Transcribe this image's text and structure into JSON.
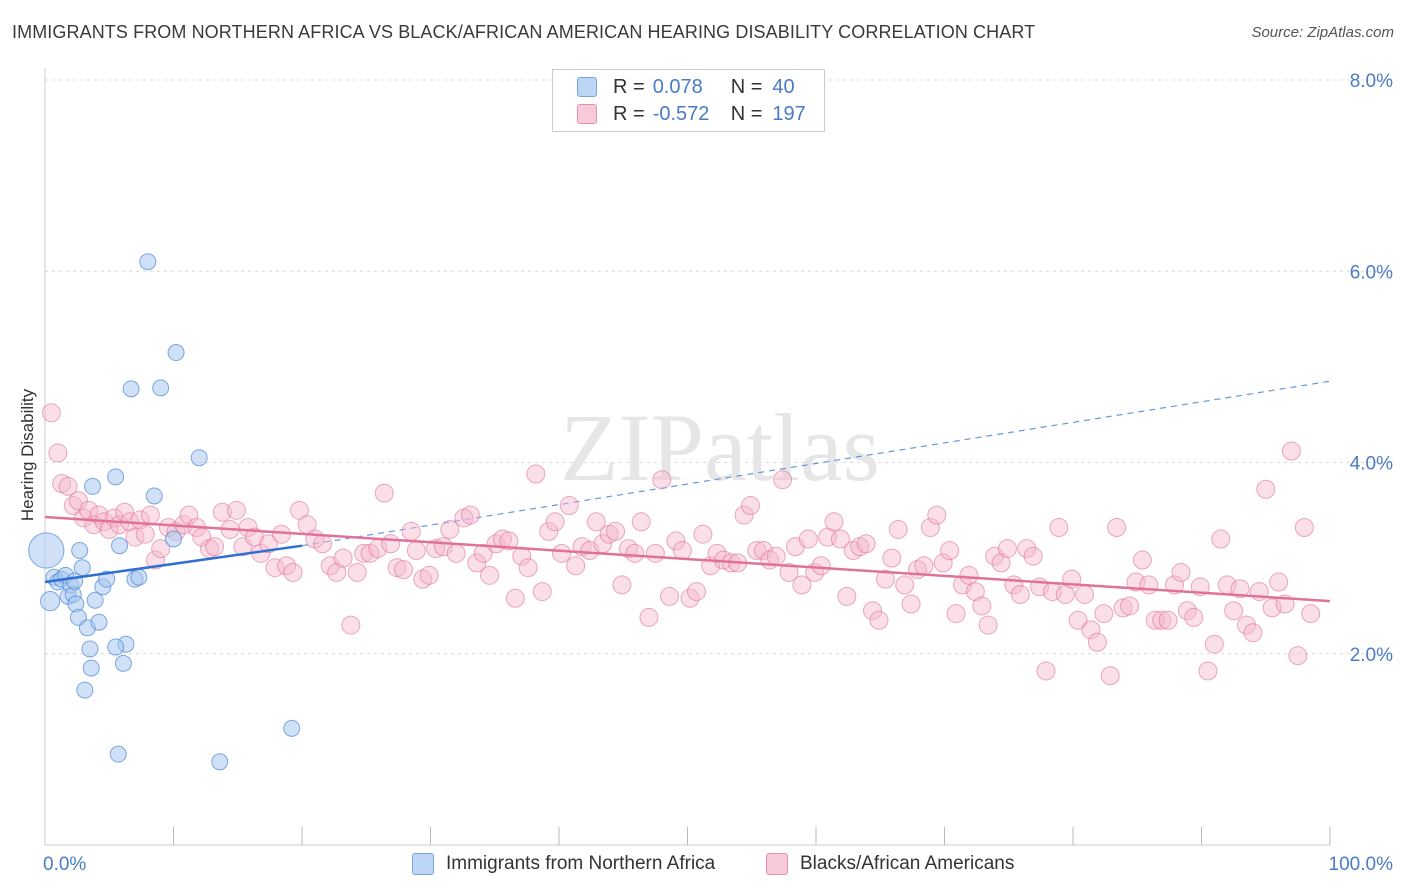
{
  "title": "IMMIGRANTS FROM NORTHERN AFRICA VS BLACK/AFRICAN AMERICAN HEARING DISABILITY CORRELATION CHART",
  "source": "Source: ZipAtlas.com",
  "watermark": "ZIPatlas",
  "legend": {
    "rows": [
      {
        "r_label": "R =",
        "r_value": "0.078",
        "n_label": "N =",
        "n_value": "40",
        "color": "#a9c8f0"
      },
      {
        "r_label": "R =",
        "r_value": "-0.572",
        "n_label": "N =",
        "n_value": "197",
        "color": "#f5b8cb"
      }
    ]
  },
  "bottom_legend": [
    {
      "label": "Immigrants from Northern Africa",
      "color": "#a9c8f0"
    },
    {
      "label": "Blacks/African Americans",
      "color": "#f5b8cb"
    }
  ],
  "chart_data": {
    "type": "scatter",
    "title": "IMMIGRANTS FROM NORTHERN AFRICA VS BLACK/AFRICAN AMERICAN HEARING DISABILITY CORRELATION CHART",
    "xlabel": "",
    "ylabel": "Hearing Disability",
    "xlim": [
      0,
      100
    ],
    "ylim": [
      0,
      8
    ],
    "x_tick_labels": [
      "0.0%",
      "100.0%"
    ],
    "y_ticks": [
      2,
      4,
      6,
      8
    ],
    "y_tick_labels": [
      "2.0%",
      "4.0%",
      "6.0%",
      "8.0%"
    ],
    "grid": true,
    "legend_position": "top-center",
    "series": [
      {
        "name": "Immigrants from Northern Africa",
        "color": "#4a86d6",
        "fill": "#a9c8f0",
        "trend": {
          "x": [
            0,
            20
          ],
          "y": [
            2.75,
            3.13
          ]
        },
        "trend_extended": {
          "x": [
            20,
            100
          ],
          "y": [
            3.13,
            4.85
          ]
        },
        "points": [
          [
            0.1,
            3.08,
            2.2
          ],
          [
            0.4,
            2.55,
            1.2
          ],
          [
            0.7,
            2.8,
            1.0
          ],
          [
            1.0,
            2.75,
            1
          ],
          [
            1.3,
            2.78,
            1
          ],
          [
            1.6,
            2.82,
            1
          ],
          [
            1.8,
            2.6,
            1
          ],
          [
            2.0,
            2.72,
            1
          ],
          [
            2.2,
            2.62,
            1
          ],
          [
            2.4,
            2.52,
            1
          ],
          [
            2.6,
            2.38,
            1
          ],
          [
            2.7,
            3.08,
            1
          ],
          [
            2.9,
            2.9,
            1
          ],
          [
            3.1,
            1.62,
            1
          ],
          [
            3.3,
            2.27,
            1
          ],
          [
            3.5,
            2.05,
            1
          ],
          [
            3.6,
            1.85,
            1
          ],
          [
            3.7,
            3.75,
            1
          ],
          [
            3.9,
            2.56,
            1
          ],
          [
            4.2,
            2.33,
            1
          ],
          [
            4.5,
            2.7,
            1
          ],
          [
            4.8,
            2.78,
            1
          ],
          [
            5.5,
            3.85,
            1
          ],
          [
            5.8,
            3.13,
            1
          ],
          [
            6.1,
            1.9,
            1
          ],
          [
            6.3,
            2.1,
            1
          ],
          [
            5.5,
            2.07,
            1
          ],
          [
            6.7,
            4.77,
            1
          ],
          [
            7.0,
            2.78,
            1
          ],
          [
            7.3,
            2.8,
            1
          ],
          [
            8.0,
            6.1,
            1
          ],
          [
            8.5,
            3.65,
            1
          ],
          [
            9.0,
            4.78,
            1
          ],
          [
            10.2,
            5.15,
            1
          ],
          [
            12.0,
            4.05,
            1
          ],
          [
            5.7,
            0.95,
            1
          ],
          [
            13.6,
            0.87,
            1
          ],
          [
            19.2,
            1.22,
            1
          ],
          [
            10.0,
            3.2,
            1
          ],
          [
            2.3,
            2.76,
            1
          ]
        ]
      },
      {
        "name": "Blacks/African Americans",
        "color": "#e0729a",
        "fill": "#f5b8cb",
        "trend": {
          "x": [
            0,
            100
          ],
          "y": [
            3.43,
            2.55
          ]
        },
        "points": [
          [
            0.5,
            4.52,
            1
          ],
          [
            1.0,
            4.1,
            1
          ],
          [
            1.3,
            3.78,
            1
          ],
          [
            1.8,
            3.75,
            1
          ],
          [
            2.2,
            3.55,
            1
          ],
          [
            2.6,
            3.6,
            1
          ],
          [
            3.0,
            3.42,
            1
          ],
          [
            3.4,
            3.5,
            1
          ],
          [
            3.8,
            3.35,
            1
          ],
          [
            4.2,
            3.45,
            1
          ],
          [
            4.6,
            3.38,
            1
          ],
          [
            5.0,
            3.3,
            1
          ],
          [
            5.4,
            3.42,
            1
          ],
          [
            5.8,
            3.35,
            1
          ],
          [
            6.2,
            3.48,
            1
          ],
          [
            6.6,
            3.38,
            1
          ],
          [
            7.0,
            3.22,
            1
          ],
          [
            7.4,
            3.4,
            1
          ],
          [
            7.8,
            3.25,
            1
          ],
          [
            8.2,
            3.45,
            1
          ],
          [
            8.6,
            2.98,
            1
          ],
          [
            9.0,
            3.1,
            1
          ],
          [
            9.6,
            3.32,
            1
          ],
          [
            10.2,
            3.28,
            1
          ],
          [
            10.8,
            3.35,
            1
          ],
          [
            11.2,
            3.45,
            1
          ],
          [
            11.8,
            3.32,
            1
          ],
          [
            12.2,
            3.22,
            1
          ],
          [
            12.8,
            3.1,
            1
          ],
          [
            13.2,
            3.12,
            1
          ],
          [
            13.8,
            3.48,
            1
          ],
          [
            14.4,
            3.3,
            1
          ],
          [
            14.9,
            3.5,
            1
          ],
          [
            15.4,
            3.12,
            1
          ],
          [
            15.8,
            3.32,
            1
          ],
          [
            16.3,
            3.22,
            1
          ],
          [
            16.8,
            3.05,
            1
          ],
          [
            17.4,
            3.15,
            1
          ],
          [
            17.9,
            2.9,
            1
          ],
          [
            18.4,
            3.25,
            1
          ],
          [
            18.8,
            2.92,
            1
          ],
          [
            19.3,
            2.85,
            1
          ],
          [
            19.8,
            3.5,
            1
          ],
          [
            20.4,
            3.35,
            1
          ],
          [
            21.0,
            3.2,
            1
          ],
          [
            21.6,
            3.15,
            1
          ],
          [
            22.2,
            2.92,
            1
          ],
          [
            22.7,
            2.85,
            1
          ],
          [
            23.2,
            3.0,
            1
          ],
          [
            23.8,
            2.3,
            1
          ],
          [
            24.3,
            2.85,
            1
          ],
          [
            24.8,
            3.05,
            1
          ],
          [
            25.3,
            3.05,
            1
          ],
          [
            25.9,
            3.1,
            1
          ],
          [
            26.4,
            3.68,
            1
          ],
          [
            26.9,
            3.15,
            1
          ],
          [
            27.4,
            2.9,
            1
          ],
          [
            27.9,
            2.88,
            1
          ],
          [
            28.5,
            3.28,
            1
          ],
          [
            28.9,
            3.08,
            1
          ],
          [
            29.4,
            2.78,
            1
          ],
          [
            29.9,
            2.82,
            1
          ],
          [
            30.4,
            3.1,
            1
          ],
          [
            31.0,
            3.12,
            1
          ],
          [
            31.5,
            3.3,
            1
          ],
          [
            32.0,
            3.05,
            1
          ],
          [
            32.6,
            3.42,
            1
          ],
          [
            33.1,
            3.45,
            1
          ],
          [
            33.6,
            2.95,
            1
          ],
          [
            34.1,
            3.05,
            1
          ],
          [
            34.6,
            2.82,
            1
          ],
          [
            35.1,
            3.15,
            1
          ],
          [
            35.6,
            3.2,
            1
          ],
          [
            36.1,
            3.18,
            1
          ],
          [
            36.6,
            2.58,
            1
          ],
          [
            37.1,
            3.02,
            1
          ],
          [
            37.6,
            2.9,
            1
          ],
          [
            38.2,
            3.88,
            1
          ],
          [
            38.7,
            2.65,
            1
          ],
          [
            39.2,
            3.28,
            1
          ],
          [
            39.7,
            3.38,
            1
          ],
          [
            40.2,
            3.05,
            1
          ],
          [
            40.8,
            3.55,
            1
          ],
          [
            41.3,
            2.92,
            1
          ],
          [
            41.8,
            3.12,
            1
          ],
          [
            42.4,
            3.08,
            1
          ],
          [
            42.9,
            3.38,
            1
          ],
          [
            43.4,
            3.15,
            1
          ],
          [
            43.9,
            3.25,
            1
          ],
          [
            44.4,
            3.28,
            1
          ],
          [
            44.9,
            2.72,
            1
          ],
          [
            45.4,
            3.1,
            1
          ],
          [
            45.9,
            3.05,
            1
          ],
          [
            46.4,
            3.38,
            1
          ],
          [
            47.0,
            2.38,
            1
          ],
          [
            47.5,
            3.05,
            1
          ],
          [
            48.0,
            3.82,
            1
          ],
          [
            48.6,
            2.6,
            1
          ],
          [
            49.1,
            3.18,
            1
          ],
          [
            49.6,
            3.08,
            1
          ],
          [
            50.2,
            2.58,
            1
          ],
          [
            50.7,
            2.65,
            1
          ],
          [
            51.2,
            3.25,
            1
          ],
          [
            51.8,
            2.92,
            1
          ],
          [
            52.3,
            3.05,
            1
          ],
          [
            52.8,
            2.98,
            1
          ],
          [
            53.4,
            2.95,
            1
          ],
          [
            53.9,
            2.95,
            1
          ],
          [
            54.4,
            3.45,
            1
          ],
          [
            54.9,
            3.55,
            1
          ],
          [
            55.4,
            3.08,
            1
          ],
          [
            55.9,
            3.08,
            1
          ],
          [
            56.4,
            2.98,
            1
          ],
          [
            56.9,
            3.02,
            1
          ],
          [
            57.4,
            3.82,
            1
          ],
          [
            57.9,
            2.85,
            1
          ],
          [
            58.4,
            3.12,
            1
          ],
          [
            58.9,
            2.72,
            1
          ],
          [
            59.4,
            3.2,
            1
          ],
          [
            59.9,
            2.85,
            1
          ],
          [
            60.4,
            2.92,
            1
          ],
          [
            60.9,
            3.22,
            1
          ],
          [
            61.4,
            3.38,
            1
          ],
          [
            61.9,
            3.2,
            1
          ],
          [
            62.4,
            2.6,
            1
          ],
          [
            62.9,
            3.08,
            1
          ],
          [
            63.4,
            3.12,
            1
          ],
          [
            63.9,
            3.15,
            1
          ],
          [
            64.4,
            2.45,
            1
          ],
          [
            64.9,
            2.35,
            1
          ],
          [
            65.4,
            2.78,
            1
          ],
          [
            65.9,
            3.0,
            1
          ],
          [
            66.4,
            3.3,
            1
          ],
          [
            66.9,
            2.72,
            1
          ],
          [
            67.4,
            2.52,
            1
          ],
          [
            67.9,
            2.88,
            1
          ],
          [
            68.4,
            2.92,
            1
          ],
          [
            68.9,
            3.32,
            1
          ],
          [
            69.4,
            3.45,
            1
          ],
          [
            69.9,
            2.95,
            1
          ],
          [
            70.4,
            3.08,
            1
          ],
          [
            70.9,
            2.42,
            1
          ],
          [
            71.4,
            2.72,
            1
          ],
          [
            71.9,
            2.82,
            1
          ],
          [
            72.4,
            2.65,
            1
          ],
          [
            72.9,
            2.5,
            1
          ],
          [
            73.4,
            2.3,
            1
          ],
          [
            73.9,
            3.02,
            1
          ],
          [
            74.4,
            2.95,
            1
          ],
          [
            74.9,
            3.1,
            1
          ],
          [
            75.4,
            2.72,
            1
          ],
          [
            75.9,
            2.62,
            1
          ],
          [
            76.4,
            3.1,
            1
          ],
          [
            76.9,
            3.02,
            1
          ],
          [
            77.4,
            2.7,
            1
          ],
          [
            77.9,
            1.82,
            1
          ],
          [
            78.4,
            2.65,
            1
          ],
          [
            78.9,
            3.32,
            1
          ],
          [
            79.4,
            2.62,
            1
          ],
          [
            79.9,
            2.78,
            1
          ],
          [
            80.4,
            2.35,
            1
          ],
          [
            80.9,
            2.62,
            1
          ],
          [
            81.4,
            2.25,
            1
          ],
          [
            81.9,
            2.12,
            1
          ],
          [
            82.4,
            2.42,
            1
          ],
          [
            82.9,
            1.77,
            1
          ],
          [
            83.4,
            3.32,
            1
          ],
          [
            83.9,
            2.48,
            1
          ],
          [
            84.4,
            2.5,
            1
          ],
          [
            84.9,
            2.75,
            1
          ],
          [
            85.4,
            2.98,
            1
          ],
          [
            85.9,
            2.72,
            1
          ],
          [
            86.4,
            2.35,
            1
          ],
          [
            86.9,
            2.35,
            1
          ],
          [
            87.4,
            2.35,
            1
          ],
          [
            87.9,
            2.72,
            1
          ],
          [
            88.4,
            2.85,
            1
          ],
          [
            88.9,
            2.45,
            1
          ],
          [
            89.4,
            2.38,
            1
          ],
          [
            89.9,
            2.7,
            1
          ],
          [
            90.5,
            1.82,
            1
          ],
          [
            91.0,
            2.1,
            1
          ],
          [
            91.5,
            3.2,
            1
          ],
          [
            92.0,
            2.72,
            1
          ],
          [
            92.5,
            2.45,
            1
          ],
          [
            93.0,
            2.68,
            1
          ],
          [
            93.5,
            2.3,
            1
          ],
          [
            94.0,
            2.22,
            1
          ],
          [
            94.5,
            2.65,
            1
          ],
          [
            95.0,
            3.72,
            1
          ],
          [
            95.5,
            2.48,
            1
          ],
          [
            96.0,
            2.75,
            1
          ],
          [
            96.5,
            2.52,
            1
          ],
          [
            97.0,
            4.12,
            1
          ],
          [
            97.5,
            1.98,
            1
          ],
          [
            98.0,
            3.32,
            1
          ],
          [
            98.5,
            2.42,
            1
          ]
        ]
      }
    ]
  }
}
